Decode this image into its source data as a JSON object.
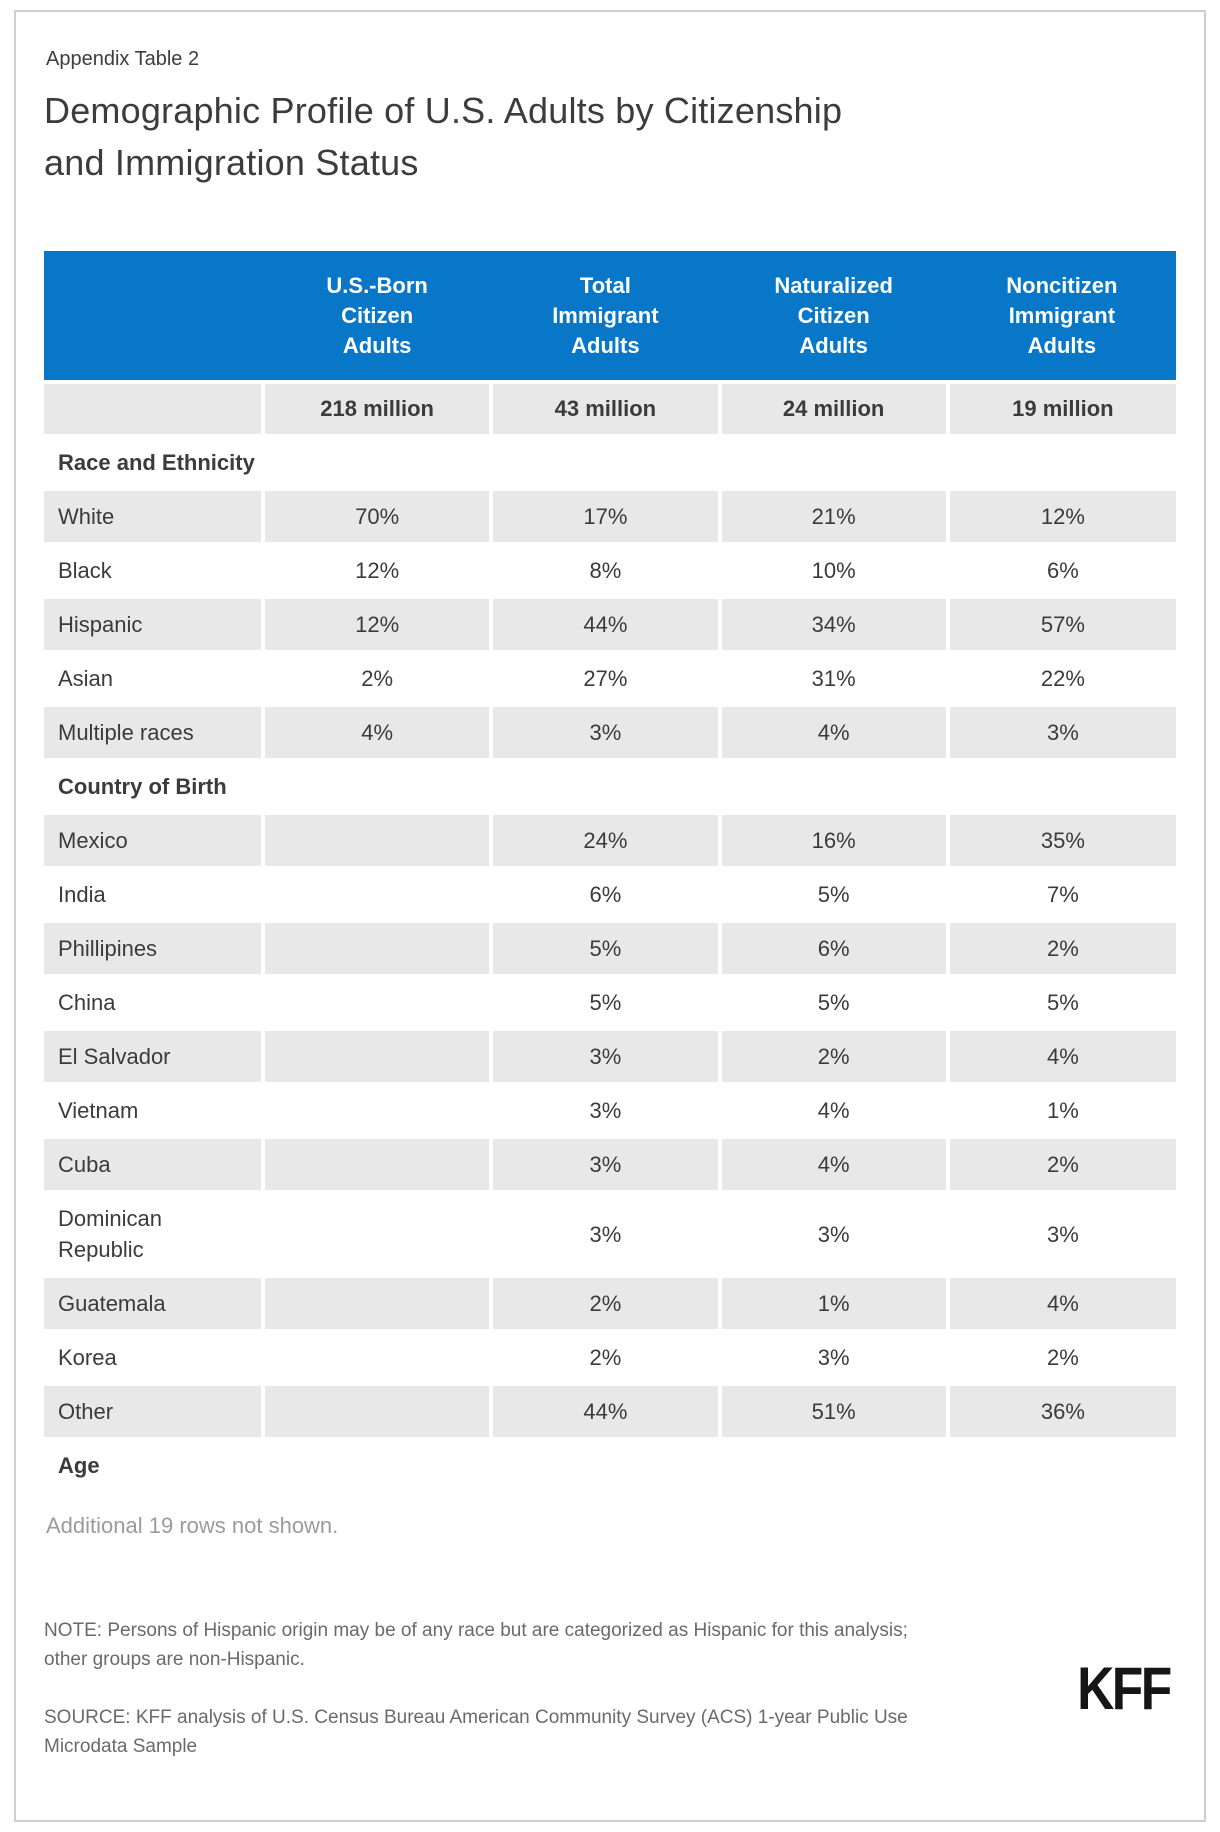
{
  "page": {
    "eyebrow": "Appendix Table 2",
    "title": "Demographic Profile of U.S. Adults by Citizenship\nand Immigration Status",
    "additional_rows_note": "Additional 19 rows not shown.",
    "note": "NOTE: Persons of Hispanic origin may be of any race but are categorized as Hispanic for this analysis;\nother groups are non-Hispanic.",
    "source": "SOURCE: KFF analysis of U.S. Census Bureau American Community Survey (ACS) 1-year Public Use\nMicrodata Sample",
    "logo": "KFF"
  },
  "colors": {
    "header_blue": "#0877C8",
    "row_shade": "#E8E8E8",
    "body_text": "#3B3B3B",
    "muted_text": "#9B9B9B",
    "note_text": "#6A6A6A",
    "page_border": "#CFCFCF",
    "logo_black": "#161616"
  },
  "table": {
    "columns": [
      {
        "label": "U.S.-Born\nCitizen\nAdults",
        "subtotal": "218 million"
      },
      {
        "label": "Total\nImmigrant\nAdults",
        "subtotal": "43 million"
      },
      {
        "label": "Naturalized\nCitizen\nAdults",
        "subtotal": "24 million"
      },
      {
        "label": "Noncitizen\nImmigrant\nAdults",
        "subtotal": "19 million"
      }
    ],
    "rows": [
      {
        "type": "section",
        "label": "Race and Ethnicity"
      },
      {
        "type": "data",
        "label": "White",
        "values": [
          "70%",
          "17%",
          "21%",
          "12%"
        ]
      },
      {
        "type": "data",
        "label": "Black",
        "values": [
          "12%",
          "8%",
          "10%",
          "6%"
        ]
      },
      {
        "type": "data",
        "label": "Hispanic",
        "values": [
          "12%",
          "44%",
          "34%",
          "57%"
        ]
      },
      {
        "type": "data",
        "label": "Asian",
        "values": [
          "2%",
          "27%",
          "31%",
          "22%"
        ]
      },
      {
        "type": "data",
        "label": "Multiple races",
        "values": [
          "4%",
          "3%",
          "4%",
          "3%"
        ]
      },
      {
        "type": "section",
        "label": "Country of Birth"
      },
      {
        "type": "data",
        "label": "Mexico",
        "values": [
          "",
          "24%",
          "16%",
          "35%"
        ]
      },
      {
        "type": "data",
        "label": "India",
        "values": [
          "",
          "6%",
          "5%",
          "7%"
        ]
      },
      {
        "type": "data",
        "label": "Phillipines",
        "values": [
          "",
          "5%",
          "6%",
          "2%"
        ]
      },
      {
        "type": "data",
        "label": "China",
        "values": [
          "",
          "5%",
          "5%",
          "5%"
        ]
      },
      {
        "type": "data",
        "label": "El Salvador",
        "values": [
          "",
          "3%",
          "2%",
          "4%"
        ]
      },
      {
        "type": "data",
        "label": "Vietnam",
        "values": [
          "",
          "3%",
          "4%",
          "1%"
        ]
      },
      {
        "type": "data",
        "label": "Cuba",
        "values": [
          "",
          "3%",
          "4%",
          "2%"
        ]
      },
      {
        "type": "data",
        "label": "Dominican Republic",
        "values": [
          "",
          "3%",
          "3%",
          "3%"
        ]
      },
      {
        "type": "data",
        "label": "Guatemala",
        "values": [
          "",
          "2%",
          "1%",
          "4%"
        ]
      },
      {
        "type": "data",
        "label": "Korea",
        "values": [
          "",
          "2%",
          "3%",
          "2%"
        ]
      },
      {
        "type": "data",
        "label": "Other",
        "values": [
          "",
          "44%",
          "51%",
          "36%"
        ]
      },
      {
        "type": "section",
        "label": "Age"
      }
    ]
  },
  "chart_data": {
    "type": "table",
    "title": "Demographic Profile of U.S. Adults by Citizenship and Immigration Status",
    "columns": [
      "U.S.-Born Citizen Adults",
      "Total Immigrant Adults",
      "Naturalized Citizen Adults",
      "Noncitizen Immigrant Adults"
    ],
    "population_totals": [
      "218 million",
      "43 million",
      "24 million",
      "19 million"
    ],
    "sections": [
      {
        "name": "Race and Ethnicity",
        "rows": [
          {
            "label": "White",
            "values": [
              70,
              17,
              21,
              12
            ]
          },
          {
            "label": "Black",
            "values": [
              12,
              8,
              10,
              6
            ]
          },
          {
            "label": "Hispanic",
            "values": [
              12,
              44,
              34,
              57
            ]
          },
          {
            "label": "Asian",
            "values": [
              2,
              27,
              31,
              22
            ]
          },
          {
            "label": "Multiple races",
            "values": [
              4,
              3,
              4,
              3
            ]
          }
        ]
      },
      {
        "name": "Country of Birth",
        "rows": [
          {
            "label": "Mexico",
            "values": [
              null,
              24,
              16,
              35
            ]
          },
          {
            "label": "India",
            "values": [
              null,
              6,
              5,
              7
            ]
          },
          {
            "label": "Phillipines",
            "values": [
              null,
              5,
              6,
              2
            ]
          },
          {
            "label": "China",
            "values": [
              null,
              5,
              5,
              5
            ]
          },
          {
            "label": "El Salvador",
            "values": [
              null,
              3,
              2,
              4
            ]
          },
          {
            "label": "Vietnam",
            "values": [
              null,
              3,
              4,
              1
            ]
          },
          {
            "label": "Cuba",
            "values": [
              null,
              3,
              4,
              2
            ]
          },
          {
            "label": "Dominican Republic",
            "values": [
              null,
              3,
              3,
              3
            ]
          },
          {
            "label": "Guatemala",
            "values": [
              null,
              2,
              1,
              4
            ]
          },
          {
            "label": "Korea",
            "values": [
              null,
              2,
              3,
              2
            ]
          },
          {
            "label": "Other",
            "values": [
              null,
              44,
              51,
              36
            ]
          }
        ]
      },
      {
        "name": "Age",
        "rows": []
      }
    ],
    "units": "percent",
    "footnote": "Additional 19 rows not shown."
  }
}
